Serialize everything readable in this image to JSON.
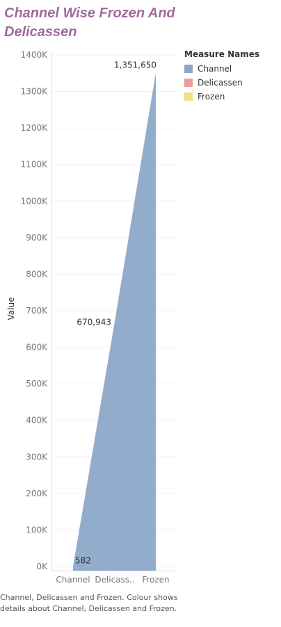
{
  "title": "Channel Wise Frozen And Delicassen",
  "chart_data": {
    "type": "area",
    "categories": [
      "Channel",
      "Delicass..",
      "Frozen"
    ],
    "series": [
      {
        "name": "Channel",
        "values": [
          582,
          670943,
          1351650
        ],
        "color": "#8ba9c8"
      }
    ],
    "data_labels": [
      "582",
      "670,943",
      "1,351,650"
    ],
    "ylabel": "Value",
    "ylim": [
      0,
      1400000
    ],
    "yticks": [
      0,
      100000,
      200000,
      300000,
      400000,
      500000,
      600000,
      700000,
      800000,
      900000,
      1000000,
      1100000,
      1200000,
      1300000,
      1400000
    ],
    "ytick_labels": [
      "0K",
      "100K",
      "200K",
      "300K",
      "400K",
      "500K",
      "600K",
      "700K",
      "800K",
      "900K",
      "1000K",
      "1100K",
      "1200K",
      "1300K",
      "1400K"
    ],
    "grid": true,
    "legend_position": "right"
  },
  "legend": {
    "title": "Measure Names",
    "items": [
      {
        "label": "Channel",
        "color": "#8ba9c8"
      },
      {
        "label": "Delicassen",
        "color": "#ee9a9b"
      },
      {
        "label": "Frozen",
        "color": "#f3dc8a"
      }
    ]
  },
  "caption": "Channel, Delicassen and Frozen.  Colour shows details about Channel, Delicassen and Frozen."
}
